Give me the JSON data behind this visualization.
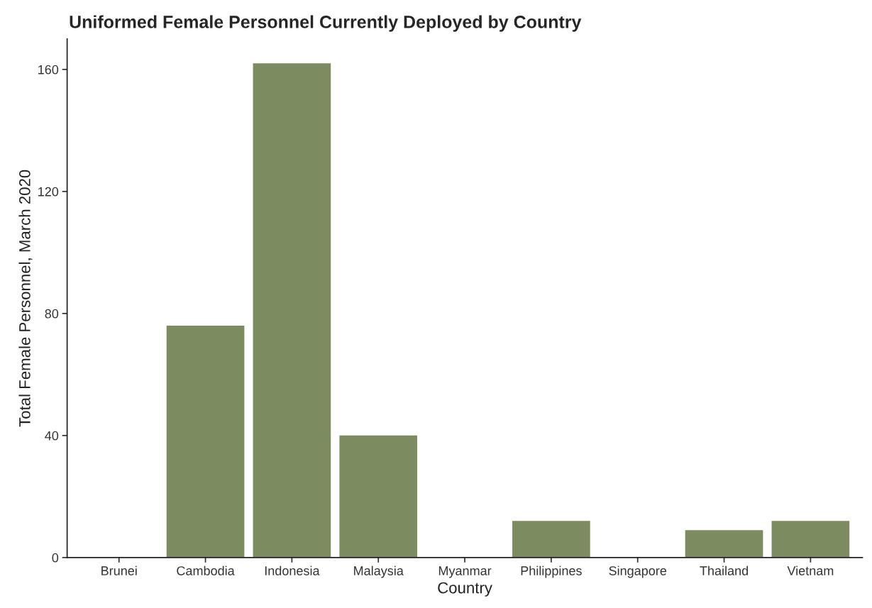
{
  "chart_data": {
    "type": "bar",
    "title": "Uniformed Female Personnel Currently Deployed by Country",
    "xlabel": "Country",
    "ylabel": "Total Female Personnel, March 2020",
    "categories": [
      "Brunei",
      "Cambodia",
      "Indonesia",
      "Malaysia",
      "Myanmar",
      "Philippines",
      "Singapore",
      "Thailand",
      "Vietnam"
    ],
    "values": [
      0,
      76,
      162,
      40,
      0,
      12,
      0,
      9,
      12
    ],
    "color": "#7d8b60",
    "ylim": [
      0,
      170
    ],
    "yticks": [
      0,
      40,
      80,
      120,
      160
    ],
    "grid": false,
    "legend": false
  }
}
